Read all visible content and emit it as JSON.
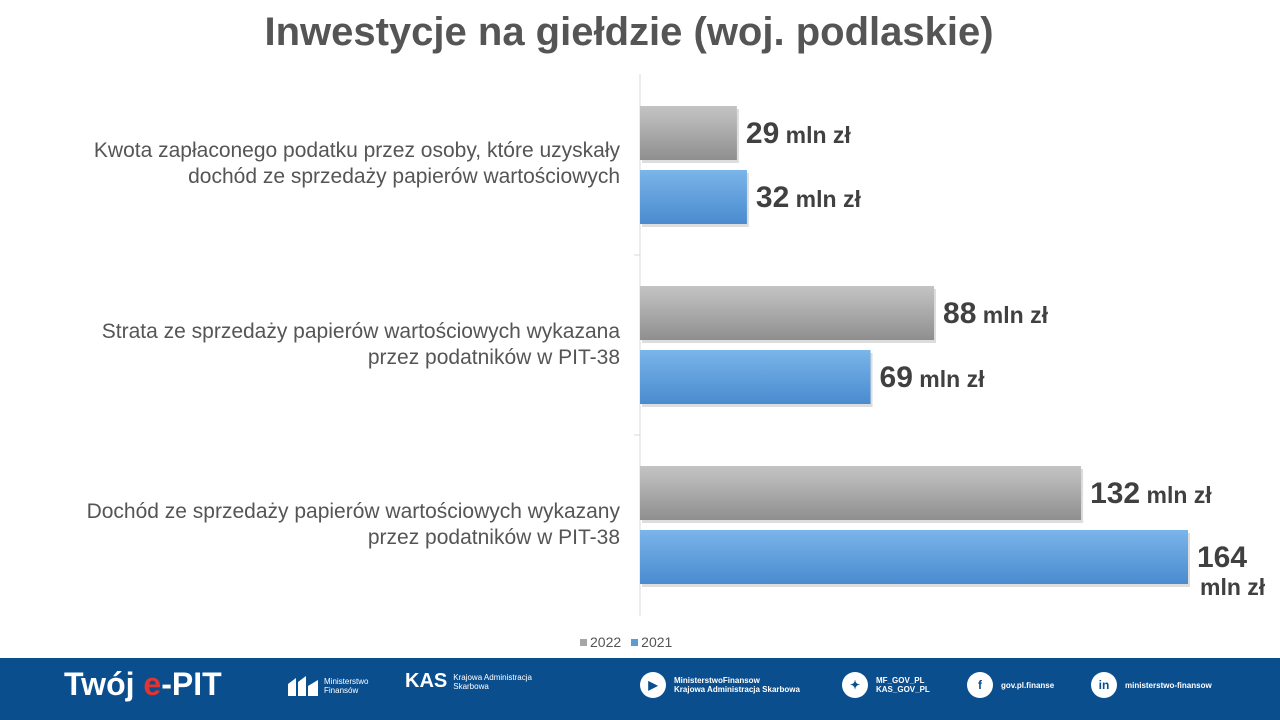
{
  "title": "Inwestycje na giełdzie (woj. podlaskie)",
  "chart_data": {
    "type": "bar",
    "orientation": "horizontal",
    "categories": [
      "Kwota zapłaconego podatku przez osoby, które uzyskały dochód ze sprzedaży papierów wartościowych",
      "Strata ze sprzedaży papierów wartościowych wykazana przez podatników w PIT-38",
      "Dochód ze sprzedaży papierów wartościowych wykazany przez podatników w PIT-38"
    ],
    "category_lines": [
      [
        "Kwota zapłaconego podatku przez osoby, które uzyskały",
        "dochód ze sprzedaży papierów wartościowych"
      ],
      [
        "Strata ze sprzedaży papierów wartościowych wykazana",
        "przez podatników w PIT-38"
      ],
      [
        "Dochód ze sprzedaży papierów wartościowych wykazany",
        "przez podatników w PIT-38"
      ]
    ],
    "series": [
      {
        "name": "2022",
        "values": [
          29,
          88,
          132
        ],
        "color": "#a6a6a6"
      },
      {
        "name": "2021",
        "values": [
          32,
          69,
          164
        ],
        "color": "#5b9bd5"
      }
    ],
    "unit": "mln zł",
    "xlim": [
      0,
      164
    ],
    "grid": false,
    "legend_position": "bottom"
  },
  "footer": {
    "brand_prefix": "Twój ",
    "brand_e": "e",
    "brand_suffix": "-PIT",
    "mf_line1": "Ministerstwo",
    "mf_line2": "Finansów",
    "kas_mark": "KAS",
    "kas_line1": "Krajowa Administracja",
    "kas_line2": "Skarbowa",
    "youtube_line1": "MinisterstwoFinansow",
    "youtube_line2": "Krajowa Administracja Skarbowa",
    "twitter_line1": "MF_GOV_PL",
    "twitter_line2": "KAS_GOV_PL",
    "facebook": "gov.pl.finanse",
    "linkedin": "ministerstwo-finansow"
  }
}
